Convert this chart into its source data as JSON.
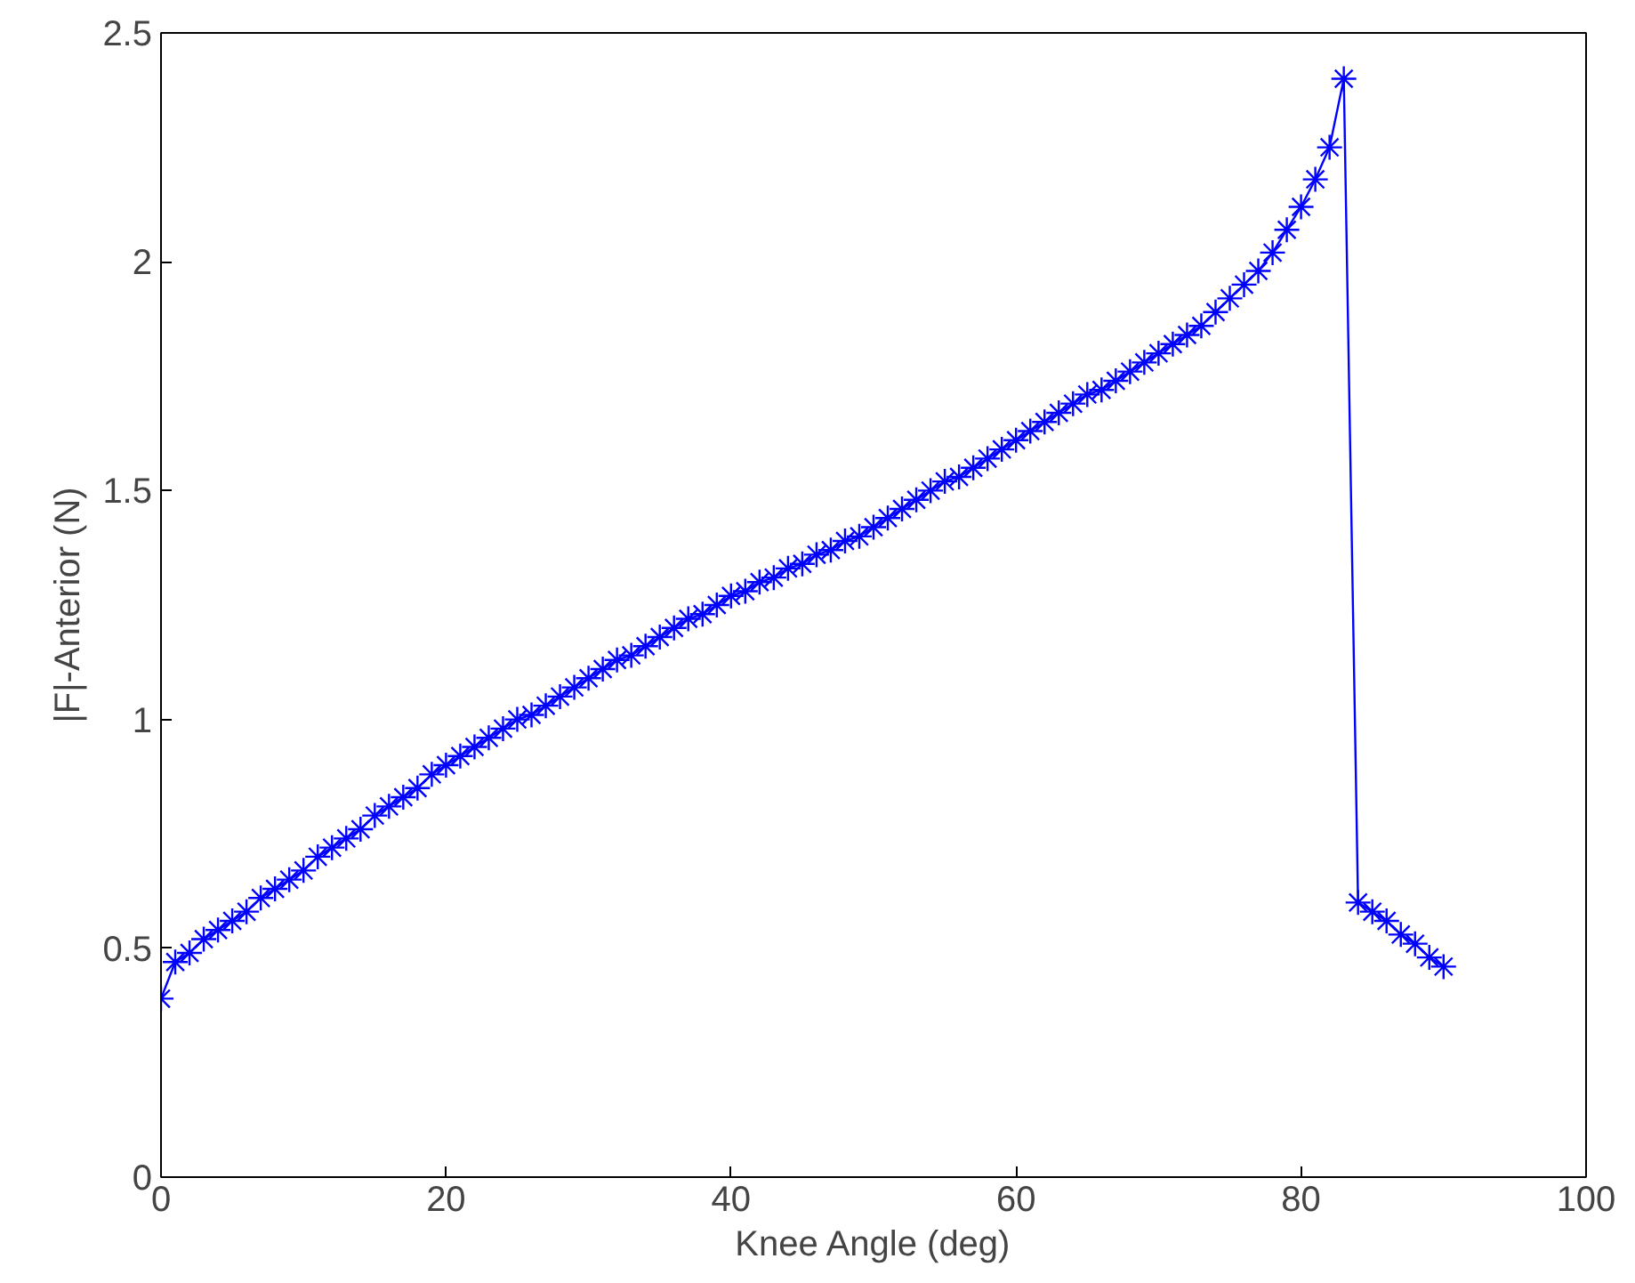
{
  "chart_data": {
    "type": "line",
    "xlabel": "Knee Angle (deg)",
    "ylabel": "|F|-Anterior (N)",
    "x": [
      0,
      1,
      2,
      3,
      4,
      5,
      6,
      7,
      8,
      9,
      10,
      11,
      12,
      13,
      14,
      15,
      16,
      17,
      18,
      19,
      20,
      21,
      22,
      23,
      24,
      25,
      26,
      27,
      28,
      29,
      30,
      31,
      32,
      33,
      34,
      35,
      36,
      37,
      38,
      39,
      40,
      41,
      42,
      43,
      44,
      45,
      46,
      47,
      48,
      49,
      50,
      51,
      52,
      53,
      54,
      55,
      56,
      57,
      58,
      59,
      60,
      61,
      62,
      63,
      64,
      65,
      66,
      67,
      68,
      69,
      70,
      71,
      72,
      73,
      74,
      75,
      76,
      77,
      78,
      79,
      80,
      81,
      82,
      83,
      84,
      85,
      86,
      87,
      88,
      89,
      90
    ],
    "series": [
      {
        "color": "#0000ff",
        "values": [
          0.39,
          0.47,
          0.49,
          0.52,
          0.54,
          0.56,
          0.58,
          0.61,
          0.63,
          0.65,
          0.67,
          0.7,
          0.72,
          0.74,
          0.76,
          0.79,
          0.81,
          0.83,
          0.85,
          0.88,
          0.9,
          0.92,
          0.94,
          0.96,
          0.98,
          1.0,
          1.01,
          1.03,
          1.05,
          1.07,
          1.09,
          1.11,
          1.13,
          1.14,
          1.16,
          1.18,
          1.2,
          1.22,
          1.23,
          1.25,
          1.27,
          1.28,
          1.3,
          1.31,
          1.33,
          1.34,
          1.36,
          1.37,
          1.39,
          1.4,
          1.42,
          1.44,
          1.46,
          1.48,
          1.5,
          1.52,
          1.53,
          1.55,
          1.57,
          1.59,
          1.61,
          1.63,
          1.65,
          1.67,
          1.69,
          1.71,
          1.72,
          1.74,
          1.76,
          1.78,
          1.8,
          1.82,
          1.84,
          1.86,
          1.89,
          1.92,
          1.95,
          1.98,
          2.02,
          2.07,
          2.12,
          2.18,
          2.25,
          2.4,
          0.6,
          0.58,
          0.56,
          0.53,
          0.51,
          0.48,
          0.46
        ]
      }
    ],
    "xlim": [
      0,
      100
    ],
    "xticks": [
      0,
      20,
      40,
      60,
      80,
      100
    ],
    "ylim": [
      0,
      2.5
    ],
    "yticks": [
      0,
      0.5,
      1,
      1.5,
      2,
      2.5
    ],
    "marker": "cross",
    "line_style": "solid",
    "grid": false
  }
}
